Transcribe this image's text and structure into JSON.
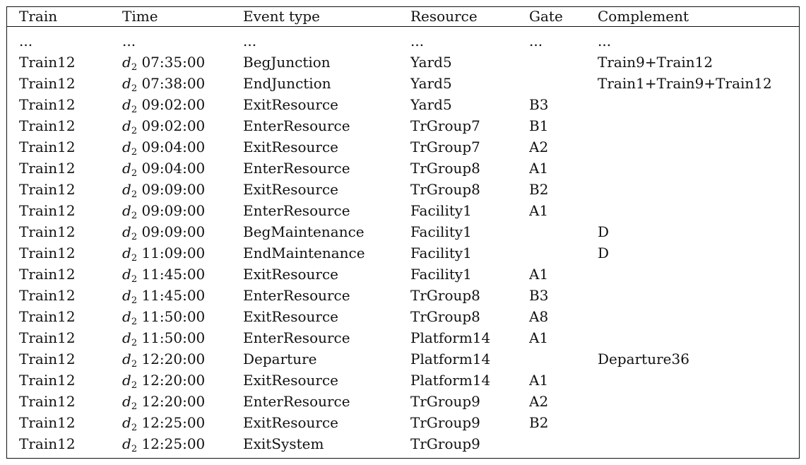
{
  "columns": [
    "Train",
    "Time",
    "Event type",
    "Resource",
    "Gate",
    "Complement"
  ],
  "ellipsis_row": [
    "...",
    "...",
    "...",
    "...",
    "...",
    "..."
  ],
  "rows": [
    {
      "train": "Train12",
      "day": "d",
      "day_sub": "2",
      "time": "07:35:00",
      "event": "BegJunction",
      "resource": "Yard5",
      "gate": "",
      "complement": "Train9+Train12"
    },
    {
      "train": "Train12",
      "day": "d",
      "day_sub": "2",
      "time": "07:38:00",
      "event": "EndJunction",
      "resource": "Yard5",
      "gate": "",
      "complement": "Train1+Train9+Train12"
    },
    {
      "train": "Train12",
      "day": "d",
      "day_sub": "2",
      "time": "09:02:00",
      "event": "ExitResource",
      "resource": "Yard5",
      "gate": "B3",
      "complement": ""
    },
    {
      "train": "Train12",
      "day": "d",
      "day_sub": "2",
      "time": "09:02:00",
      "event": "EnterResource",
      "resource": "TrGroup7",
      "gate": "B1",
      "complement": ""
    },
    {
      "train": "Train12",
      "day": "d",
      "day_sub": "2",
      "time": "09:04:00",
      "event": "ExitResource",
      "resource": "TrGroup7",
      "gate": "A2",
      "complement": ""
    },
    {
      "train": "Train12",
      "day": "d",
      "day_sub": "2",
      "time": "09:04:00",
      "event": "EnterResource",
      "resource": "TrGroup8",
      "gate": "A1",
      "complement": ""
    },
    {
      "train": "Train12",
      "day": "d",
      "day_sub": "2",
      "time": "09:09:00",
      "event": "ExitResource",
      "resource": "TrGroup8",
      "gate": "B2",
      "complement": ""
    },
    {
      "train": "Train12",
      "day": "d",
      "day_sub": "2",
      "time": "09:09:00",
      "event": "EnterResource",
      "resource": "Facility1",
      "gate": "A1",
      "complement": ""
    },
    {
      "train": "Train12",
      "day": "d",
      "day_sub": "2",
      "time": "09:09:00",
      "event": "BegMaintenance",
      "resource": "Facility1",
      "gate": "",
      "complement": "D"
    },
    {
      "train": "Train12",
      "day": "d",
      "day_sub": "2",
      "time": "11:09:00",
      "event": "EndMaintenance",
      "resource": "Facility1",
      "gate": "",
      "complement": "D"
    },
    {
      "train": "Train12",
      "day": "d",
      "day_sub": "2",
      "time": "11:45:00",
      "event": "ExitResource",
      "resource": "Facility1",
      "gate": "A1",
      "complement": ""
    },
    {
      "train": "Train12",
      "day": "d",
      "day_sub": "2",
      "time": "11:45:00",
      "event": "EnterResource",
      "resource": "TrGroup8",
      "gate": "B3",
      "complement": ""
    },
    {
      "train": "Train12",
      "day": "d",
      "day_sub": "2",
      "time": "11:50:00",
      "event": "ExitResource",
      "resource": "TrGroup8",
      "gate": "A8",
      "complement": ""
    },
    {
      "train": "Train12",
      "day": "d",
      "day_sub": "2",
      "time": "11:50:00",
      "event": "EnterResource",
      "resource": "Platform14",
      "gate": "A1",
      "complement": ""
    },
    {
      "train": "Train12",
      "day": "d",
      "day_sub": "2",
      "time": "12:20:00",
      "event": "Departure",
      "resource": "Platform14",
      "gate": "",
      "complement": "Departure36"
    },
    {
      "train": "Train12",
      "day": "d",
      "day_sub": "2",
      "time": "12:20:00",
      "event": "ExitResource",
      "resource": "Platform14",
      "gate": "A1",
      "complement": ""
    },
    {
      "train": "Train12",
      "day": "d",
      "day_sub": "2",
      "time": "12:20:00",
      "event": "EnterResource",
      "resource": "TrGroup9",
      "gate": "A2",
      "complement": ""
    },
    {
      "train": "Train12",
      "day": "d",
      "day_sub": "2",
      "time": "12:25:00",
      "event": "ExitResource",
      "resource": "TrGroup9",
      "gate": "B2",
      "complement": ""
    },
    {
      "train": "Train12",
      "day": "d",
      "day_sub": "2",
      "time": "12:25:00",
      "event": "ExitSystem",
      "resource": "TrGroup9",
      "gate": "",
      "complement": ""
    }
  ]
}
